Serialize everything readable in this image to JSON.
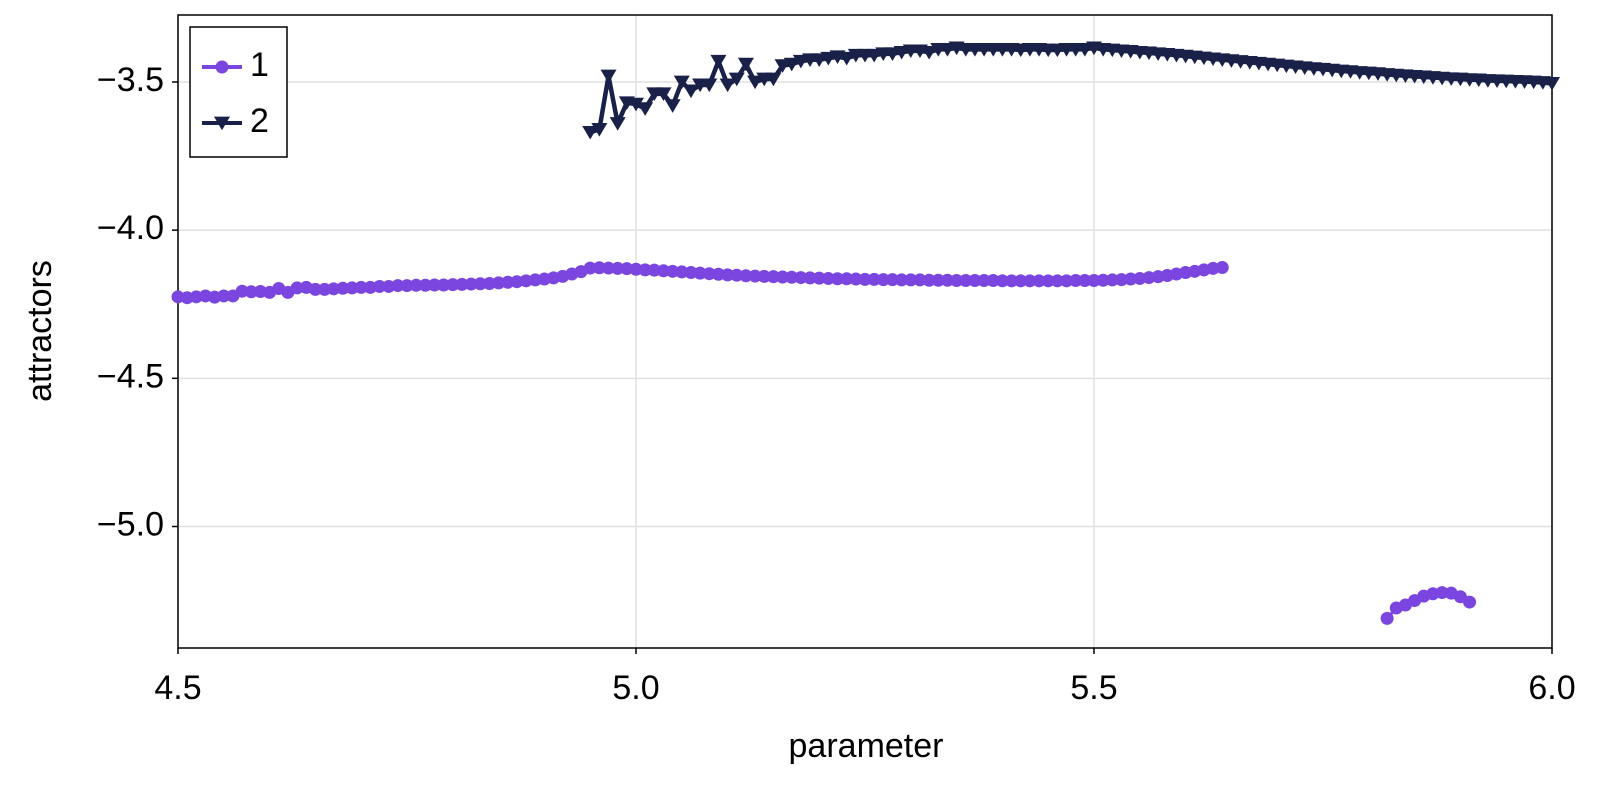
{
  "chart_data": {
    "type": "line",
    "x_label": "parameter",
    "y_label": "attractors",
    "x": [
      4.5,
      4.51,
      4.52,
      4.53,
      4.54,
      4.55,
      4.56,
      4.57,
      4.58,
      4.59,
      4.6,
      4.61,
      4.62,
      4.63,
      4.64,
      4.65,
      4.66,
      4.67,
      4.68,
      4.69,
      4.7,
      4.71,
      4.72,
      4.73,
      4.74,
      4.75,
      4.76,
      4.77,
      4.78,
      4.79,
      4.8,
      4.81,
      4.82,
      4.83,
      4.84,
      4.85,
      4.86,
      4.87,
      4.88,
      4.89,
      4.9,
      4.91,
      4.92,
      4.93,
      4.94,
      4.95,
      4.96,
      4.97,
      4.98,
      4.99,
      5.0,
      5.01,
      5.02,
      5.03,
      5.04,
      5.05,
      5.06,
      5.07,
      5.08,
      5.09,
      5.1,
      5.11,
      5.12,
      5.13,
      5.14,
      5.15,
      5.16,
      5.17,
      5.18,
      5.19,
      5.2,
      5.21,
      5.22,
      5.23,
      5.24,
      5.25,
      5.26,
      5.27,
      5.28,
      5.29,
      5.3,
      5.31,
      5.32,
      5.33,
      5.34,
      5.35,
      5.36,
      5.37,
      5.38,
      5.39,
      5.4,
      5.41,
      5.42,
      5.43,
      5.44,
      5.45,
      5.46,
      5.47,
      5.48,
      5.49,
      5.5,
      5.51,
      5.52,
      5.53,
      5.54,
      5.55,
      5.56,
      5.57,
      5.58,
      5.59,
      5.6,
      5.61,
      5.62,
      5.63,
      5.64,
      5.65,
      5.66,
      5.67,
      5.68,
      5.69,
      5.7,
      5.71,
      5.72,
      5.73,
      5.74,
      5.75,
      5.76,
      5.77,
      5.78,
      5.79,
      5.8,
      5.81,
      5.82,
      5.83,
      5.84,
      5.85,
      5.86,
      5.87,
      5.88,
      5.89,
      5.9,
      5.91,
      5.92,
      5.93,
      5.94,
      5.95,
      5.96,
      5.97,
      5.98,
      5.99,
      6.0
    ],
    "series": [
      {
        "name": "1",
        "color": "#7b45e0",
        "marker": "circle",
        "values": [
          -4.225,
          -4.228,
          -4.225,
          -4.222,
          -4.226,
          -4.222,
          -4.222,
          -4.206,
          -4.208,
          -4.207,
          -4.21,
          -4.197,
          -4.21,
          -4.195,
          -4.193,
          -4.2,
          -4.2,
          -4.198,
          -4.196,
          -4.195,
          -4.193,
          -4.193,
          -4.19,
          -4.19,
          -4.187,
          -4.187,
          -4.186,
          -4.186,
          -4.185,
          -4.185,
          -4.184,
          -4.183,
          -4.182,
          -4.181,
          -4.18,
          -4.178,
          -4.176,
          -4.174,
          -4.171,
          -4.168,
          -4.165,
          -4.161,
          -4.156,
          -4.148,
          -4.14,
          -4.128,
          -4.127,
          -4.128,
          -4.129,
          -4.13,
          -4.132,
          -4.134,
          -4.135,
          -4.137,
          -4.139,
          -4.141,
          -4.143,
          -4.145,
          -4.147,
          -4.149,
          -4.151,
          -4.152,
          -4.154,
          -4.155,
          -4.156,
          -4.157,
          -4.158,
          -4.159,
          -4.16,
          -4.161,
          -4.162,
          -4.163,
          -4.164,
          -4.164,
          -4.165,
          -4.166,
          -4.166,
          -4.167,
          -4.167,
          -4.168,
          -4.168,
          -4.168,
          -4.169,
          -4.169,
          -4.169,
          -4.17,
          -4.17,
          -4.17,
          -4.17,
          -4.17,
          -4.171,
          -4.171,
          -4.171,
          -4.171,
          -4.171,
          -4.171,
          -4.171,
          -4.171,
          -4.17,
          -4.17,
          -4.17,
          -4.169,
          -4.168,
          -4.167,
          -4.165,
          -4.163,
          -4.16,
          -4.157,
          -4.153,
          -4.148,
          -4.143,
          -4.139,
          -4.134,
          -4.129,
          -4.126,
          null,
          null,
          null,
          null,
          null,
          null,
          null,
          null,
          null,
          null,
          null,
          null,
          null,
          null,
          null,
          null,
          null,
          -5.31,
          -5.275,
          -5.265,
          -5.25,
          -5.235,
          -5.227,
          -5.223,
          -5.225,
          -5.237,
          -5.255,
          null,
          null,
          null,
          null,
          null,
          null,
          null,
          null,
          null
        ]
      },
      {
        "name": "2",
        "color": "#1a2148",
        "marker": "triangle-down",
        "values": [
          null,
          null,
          null,
          null,
          null,
          null,
          null,
          null,
          null,
          null,
          null,
          null,
          null,
          null,
          null,
          null,
          null,
          null,
          null,
          null,
          null,
          null,
          null,
          null,
          null,
          null,
          null,
          null,
          null,
          null,
          null,
          null,
          null,
          null,
          null,
          null,
          null,
          null,
          null,
          null,
          null,
          null,
          null,
          null,
          null,
          -3.67,
          -3.66,
          -3.48,
          -3.64,
          -3.57,
          -3.575,
          -3.59,
          -3.54,
          -3.54,
          -3.58,
          -3.5,
          -3.53,
          -3.51,
          -3.51,
          -3.43,
          -3.51,
          -3.49,
          -3.44,
          -3.5,
          -3.49,
          -3.49,
          -3.445,
          -3.44,
          -3.43,
          -3.425,
          -3.425,
          -3.42,
          -3.415,
          -3.42,
          -3.41,
          -3.41,
          -3.41,
          -3.405,
          -3.405,
          -3.4,
          -3.395,
          -3.395,
          -3.4,
          -3.39,
          -3.39,
          -3.385,
          -3.39,
          -3.39,
          -3.39,
          -3.39,
          -3.39,
          -3.39,
          -3.392,
          -3.39,
          -3.39,
          -3.392,
          -3.392,
          -3.39,
          -3.39,
          -3.39,
          -3.385,
          -3.39,
          -3.392,
          -3.395,
          -3.397,
          -3.4,
          -3.402,
          -3.405,
          -3.407,
          -3.41,
          -3.413,
          -3.416,
          -3.419,
          -3.422,
          -3.425,
          -3.428,
          -3.431,
          -3.434,
          -3.437,
          -3.44,
          -3.443,
          -3.446,
          -3.449,
          -3.452,
          -3.455,
          -3.457,
          -3.46,
          -3.463,
          -3.465,
          -3.468,
          -3.47,
          -3.472,
          -3.475,
          -3.477,
          -3.479,
          -3.481,
          -3.483,
          -3.485,
          -3.487,
          -3.489,
          -3.49,
          -3.492,
          -3.493,
          -3.495,
          -3.496,
          -3.497,
          -3.498,
          -3.499,
          -3.5,
          -3.502,
          -3.505
        ]
      }
    ],
    "xlim": [
      4.5,
      6.0
    ],
    "ylim": [
      -5.41,
      -3.274
    ],
    "xticks": [
      4.5,
      {
        "value": 5.0,
        "label": "5.0"
      },
      5.5,
      {
        "value": 6.0,
        "label": "6.0"
      }
    ],
    "yticks": [
      {
        "value": -3.5,
        "label": "−3.5"
      },
      {
        "value": -4.0,
        "label": "−4.0"
      },
      {
        "value": -4.5,
        "label": "−4.5"
      },
      {
        "value": -5.0,
        "label": "−5.0"
      }
    ],
    "grid": true,
    "legend": "top-left"
  }
}
